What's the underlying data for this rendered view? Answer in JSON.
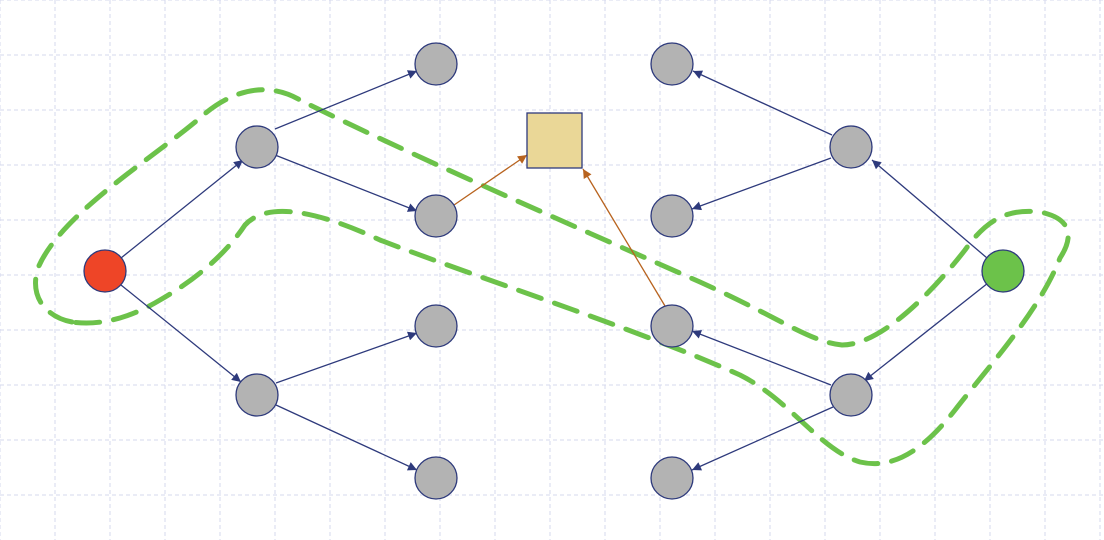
{
  "diagram": {
    "colors": {
      "background": "#ffffff",
      "grid": "#d6d9ee",
      "edge": "#2e3a7c",
      "edge_highlight": "#b8631e",
      "node_default": "#b3b3b3",
      "node_source": "#ee4527",
      "node_target": "#6cc24a",
      "square_fill": "#ead797",
      "region_outline": "#6cc24a"
    },
    "nodes": [
      {
        "id": "source",
        "type": "circle",
        "color": "#ee4527"
      },
      {
        "id": "l-upper",
        "type": "circle",
        "color": "#b3b3b3"
      },
      {
        "id": "l-lower",
        "type": "circle",
        "color": "#b3b3b3"
      },
      {
        "id": "l-leaf-1",
        "type": "circle",
        "color": "#b3b3b3"
      },
      {
        "id": "l-leaf-2",
        "type": "circle",
        "color": "#b3b3b3"
      },
      {
        "id": "l-leaf-3",
        "type": "circle",
        "color": "#b3b3b3"
      },
      {
        "id": "l-leaf-4",
        "type": "circle",
        "color": "#b3b3b3"
      },
      {
        "id": "meeting-square",
        "type": "square",
        "color": "#ead797"
      },
      {
        "id": "target",
        "type": "circle",
        "color": "#6cc24a"
      },
      {
        "id": "r-upper",
        "type": "circle",
        "color": "#b3b3b3"
      },
      {
        "id": "r-lower",
        "type": "circle",
        "color": "#b3b3b3"
      },
      {
        "id": "r-leaf-1",
        "type": "circle",
        "color": "#b3b3b3"
      },
      {
        "id": "r-leaf-2",
        "type": "circle",
        "color": "#b3b3b3"
      },
      {
        "id": "r-leaf-3",
        "type": "circle",
        "color": "#b3b3b3"
      },
      {
        "id": "r-leaf-4",
        "type": "circle",
        "color": "#b3b3b3"
      }
    ],
    "edges": [
      {
        "from": "source",
        "to": "l-upper",
        "color": "#2e3a7c"
      },
      {
        "from": "source",
        "to": "l-lower",
        "color": "#2e3a7c"
      },
      {
        "from": "l-upper",
        "to": "l-leaf-1",
        "color": "#2e3a7c"
      },
      {
        "from": "l-upper",
        "to": "l-leaf-2",
        "color": "#2e3a7c"
      },
      {
        "from": "l-lower",
        "to": "l-leaf-3",
        "color": "#2e3a7c"
      },
      {
        "from": "l-lower",
        "to": "l-leaf-4",
        "color": "#2e3a7c"
      },
      {
        "from": "l-leaf-2",
        "to": "meeting-square",
        "color": "#b8631e"
      },
      {
        "from": "target",
        "to": "r-upper",
        "color": "#2e3a7c"
      },
      {
        "from": "target",
        "to": "r-lower",
        "color": "#2e3a7c"
      },
      {
        "from": "r-upper",
        "to": "r-leaf-1",
        "color": "#2e3a7c"
      },
      {
        "from": "r-upper",
        "to": "r-leaf-2",
        "color": "#2e3a7c"
      },
      {
        "from": "r-lower",
        "to": "r-leaf-3",
        "color": "#2e3a7c"
      },
      {
        "from": "r-lower",
        "to": "r-leaf-4",
        "color": "#2e3a7c"
      },
      {
        "from": "r-leaf-3",
        "to": "meeting-square",
        "color": "#b8631e"
      }
    ],
    "regions": [
      {
        "id": "source-path-region",
        "outline": "dashed",
        "color": "#6cc24a"
      },
      {
        "id": "target-path-region",
        "outline": "dashed",
        "color": "#6cc24a"
      }
    ]
  }
}
